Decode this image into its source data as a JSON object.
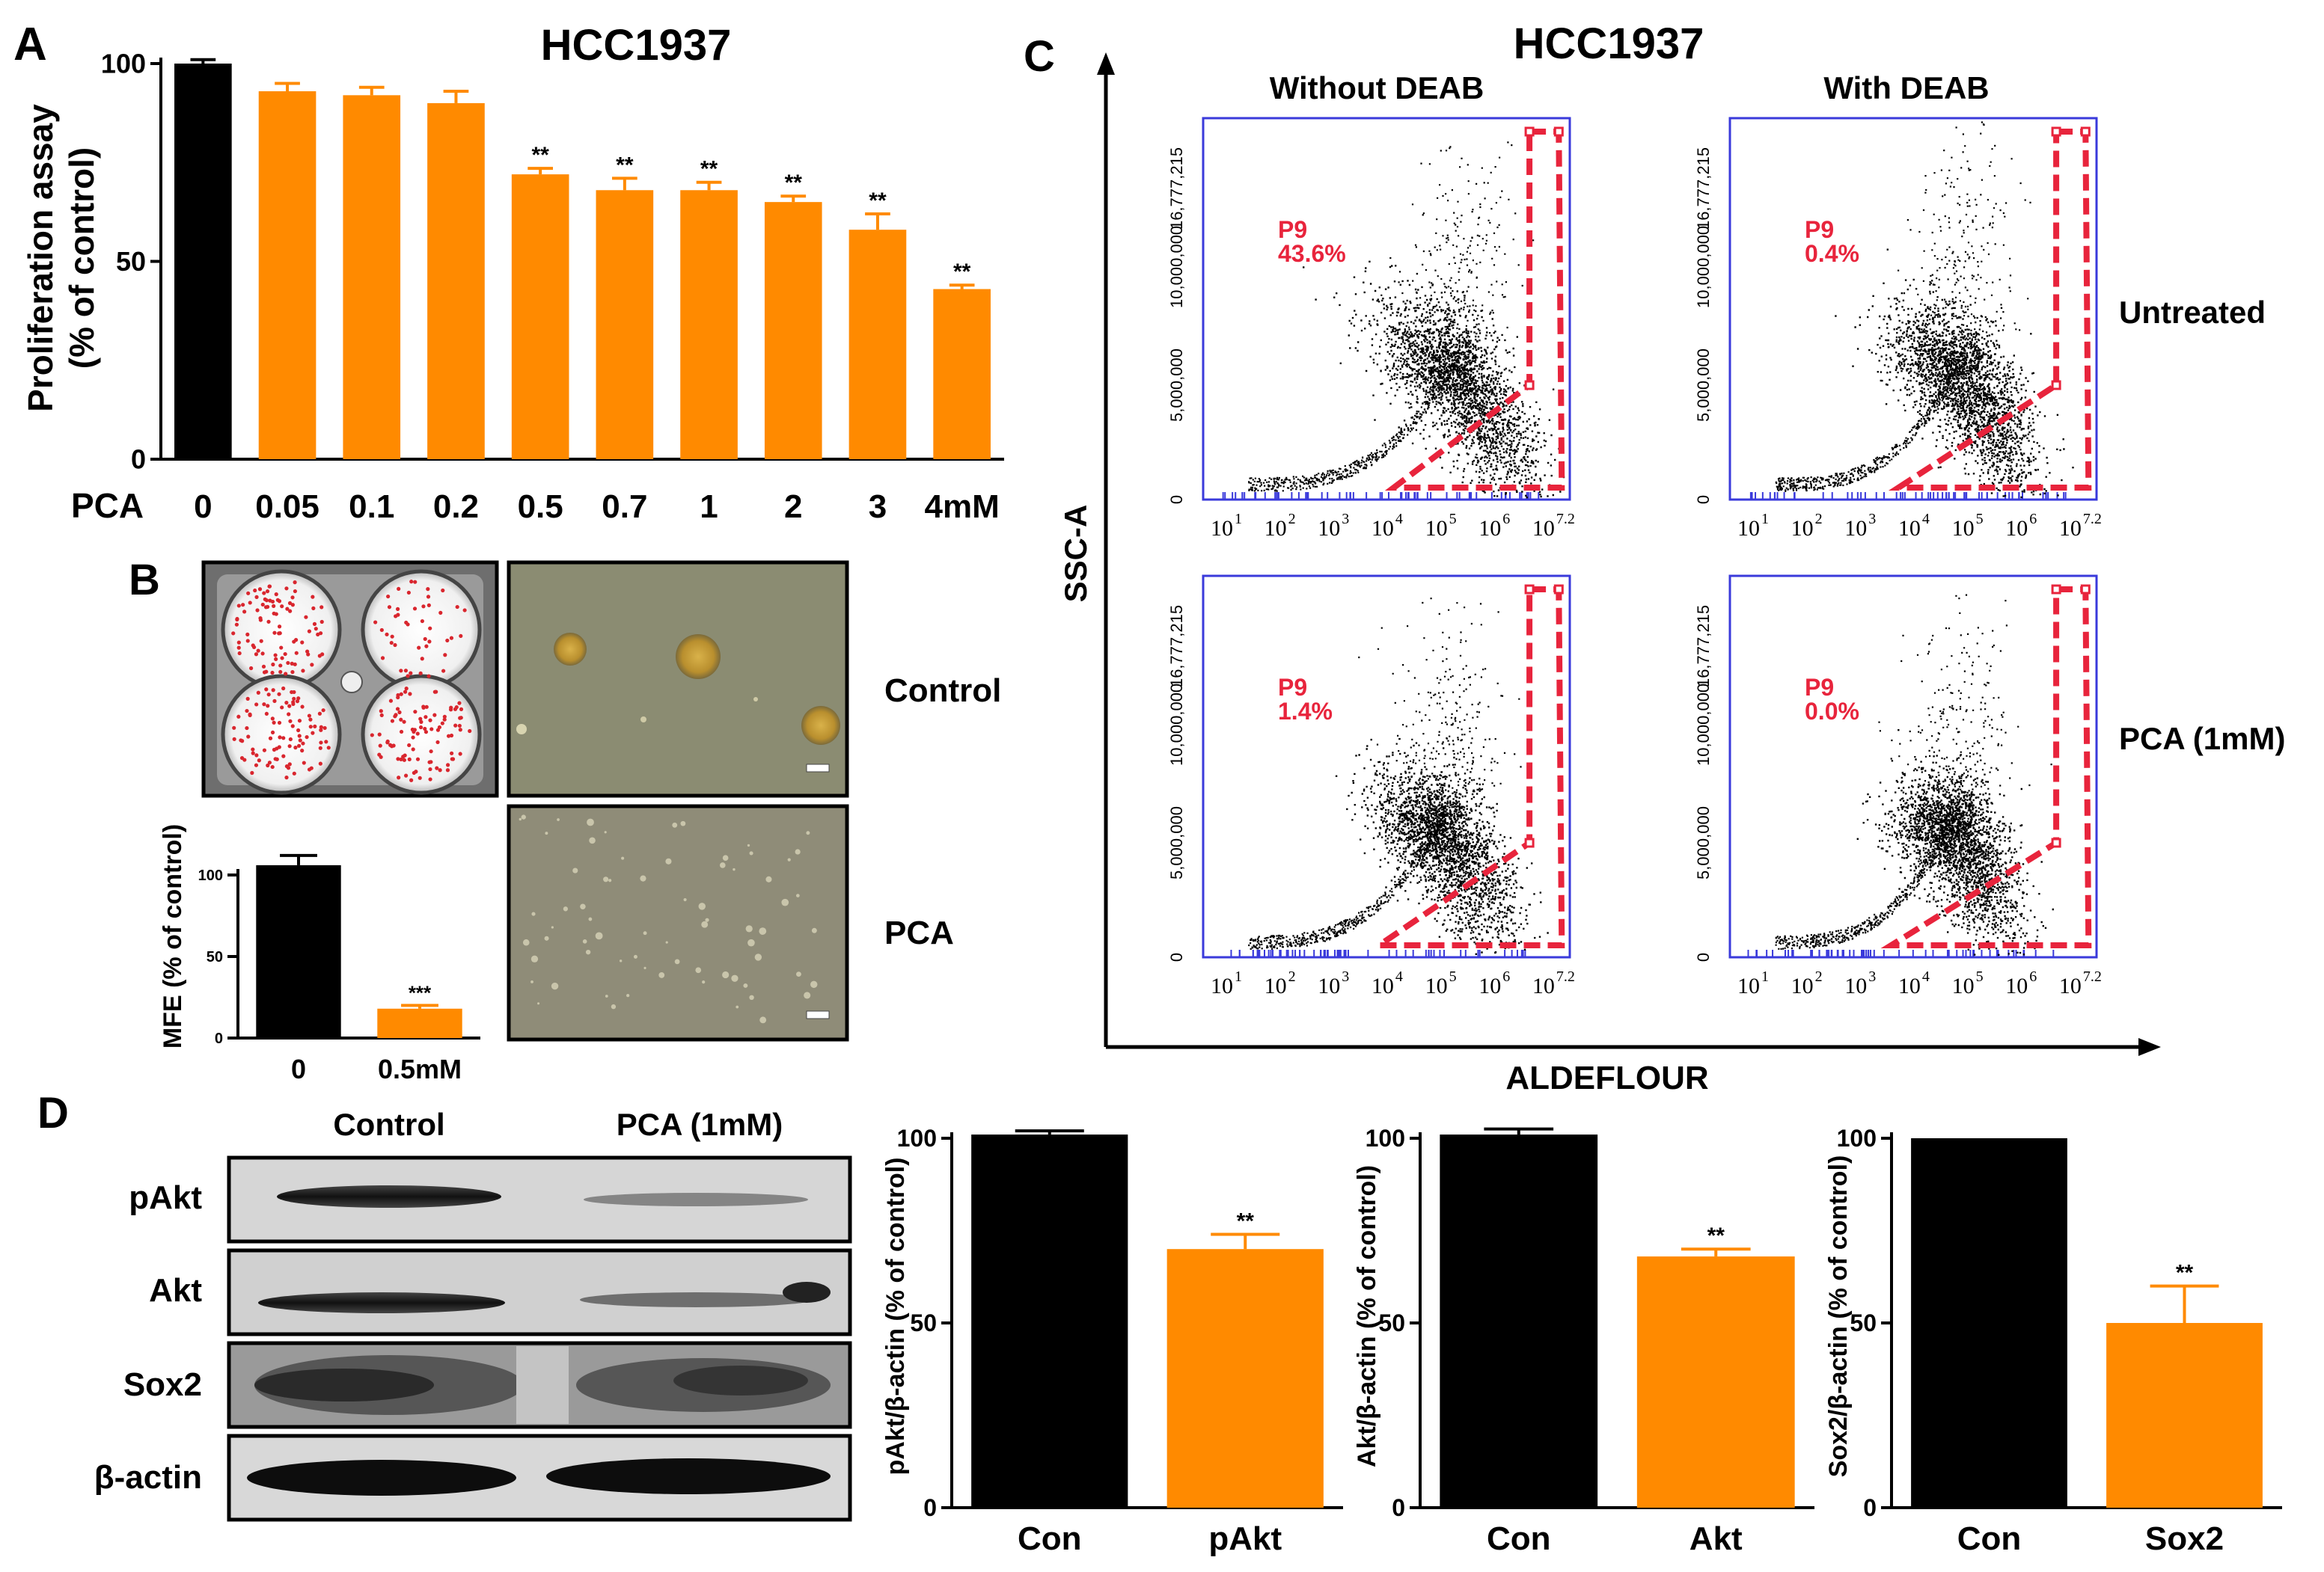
{
  "colors": {
    "control": "#000000",
    "treated": "#ff8a00",
    "gate": "#e8243c",
    "flow_frame": "#3a3adb",
    "blot_bg": "#dcdcdc"
  },
  "panels": {
    "A": {
      "letter": "A",
      "pca_label": "PCA"
    },
    "B": {
      "letter": "B",
      "control_label": "Control",
      "pca_label": "PCA"
    },
    "C": {
      "letter": "C",
      "title": "HCC1937",
      "col_titles": [
        "Without DEAB",
        "With DEAB"
      ],
      "row_labels": [
        "Untreated",
        "PCA (1mM)"
      ],
      "y_label": "SSC-A",
      "x_label": "ALDEFLOUR",
      "y_ticks": [
        "16,777,215",
        "10,000,000",
        "5,000,000",
        "0"
      ],
      "x_ticks": [
        "10",
        "10",
        "10",
        "10",
        "10",
        "10",
        "10"
      ],
      "x_tick_exps": [
        "1",
        "2",
        "3",
        "4",
        "5",
        "6",
        "7.2"
      ],
      "gate_name": "P9",
      "gate_values": [
        [
          "43.6%",
          "0.4%"
        ],
        [
          "1.4%",
          "0.0%"
        ]
      ]
    },
    "D": {
      "letter": "D",
      "lane_labels": [
        "Control",
        "PCA (1mM)"
      ],
      "blot_rows": [
        "pAkt",
        "Akt",
        "Sox2",
        "β-actin"
      ]
    }
  },
  "chart_data": [
    {
      "id": "A",
      "type": "bar",
      "title": "HCC1937",
      "ylabel": "Proliferation assay\n(% of control)",
      "xlabel": "PCA",
      "categories": [
        "0",
        "0.05",
        "0.1",
        "0.2",
        "0.5",
        "0.7",
        "1",
        "2",
        "3",
        "4mM"
      ],
      "values": [
        100,
        93,
        92,
        90,
        72,
        68,
        68,
        65,
        58,
        43
      ],
      "errors": [
        1,
        2,
        2,
        3,
        1.5,
        3,
        2,
        1.5,
        4,
        1
      ],
      "significance": [
        "",
        "",
        "",
        "",
        "**",
        "**",
        "**",
        "**",
        "**",
        "**"
      ],
      "ylim": [
        0,
        100
      ],
      "yticks": [
        "0",
        "50",
        "100"
      ]
    },
    {
      "id": "B",
      "type": "bar",
      "ylabel": "MFE (% of control)",
      "categories": [
        "0",
        "0.5mM"
      ],
      "values": [
        106,
        18
      ],
      "errors": [
        6,
        2
      ],
      "significance": [
        "",
        "***"
      ],
      "ylim": [
        0,
        100
      ],
      "yticks": [
        "0",
        "50",
        "100"
      ]
    },
    {
      "id": "D1",
      "type": "bar",
      "ylabel": "pAkt/β-actin (% of  control)",
      "categories": [
        "Con",
        "pAkt"
      ],
      "values": [
        101,
        70
      ],
      "errors": [
        1,
        4
      ],
      "significance": [
        "",
        "**"
      ],
      "ylim": [
        0,
        100
      ],
      "yticks": [
        "0",
        "50",
        "100"
      ]
    },
    {
      "id": "D2",
      "type": "bar",
      "ylabel": "Akt/β-actin (% of  control)",
      "categories": [
        "Con",
        "Akt"
      ],
      "values": [
        101,
        68
      ],
      "errors": [
        1.5,
        2
      ],
      "significance": [
        "",
        "**"
      ],
      "ylim": [
        0,
        100
      ],
      "yticks": [
        "0",
        "50",
        "100"
      ]
    },
    {
      "id": "D3",
      "type": "bar",
      "ylabel": "Sox2/β-actin (% of  control)",
      "categories": [
        "Con",
        "Sox2"
      ],
      "values": [
        100,
        50
      ],
      "errors": [
        0,
        10
      ],
      "significance": [
        "",
        "**"
      ],
      "ylim": [
        0,
        100
      ],
      "yticks": [
        "0",
        "50",
        "100"
      ]
    }
  ]
}
